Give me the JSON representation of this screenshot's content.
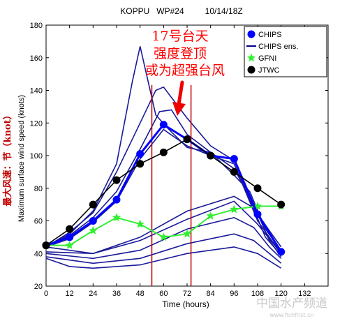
{
  "chart_data": {
    "type": "line",
    "title": "KOPPU   WP#24         10/14/18Z",
    "xlabel": "Time (hours)",
    "ylabel": "Maximum surface wind speed (knots)",
    "xlim": [
      0,
      144
    ],
    "ylim": [
      20,
      180
    ],
    "xticks": [
      0,
      12,
      24,
      36,
      48,
      60,
      72,
      84,
      96,
      108,
      120,
      132
    ],
    "yticks": [
      20,
      40,
      60,
      80,
      100,
      120,
      140,
      160,
      180
    ],
    "grid": false,
    "legend_position": "top-right",
    "legend": [
      {
        "name": "CHIPS",
        "color": "#0000ff",
        "marker": "circle"
      },
      {
        "name": "CHIPS ens.",
        "color": "#00008b",
        "marker": "none"
      },
      {
        "name": "GFNI",
        "color": "#33ee33",
        "marker": "star"
      },
      {
        "name": "JTWC",
        "color": "#000000",
        "marker": "circle"
      }
    ],
    "series": [
      {
        "name": "CHIPS",
        "color": "#0000ff",
        "x": [
          0,
          12,
          24,
          36,
          48,
          60,
          72,
          84,
          96,
          108,
          120
        ],
        "y": [
          45,
          50,
          60,
          73,
          101,
          119,
          110,
          100,
          98,
          64,
          41
        ]
      },
      {
        "name": "GFNI",
        "color": "#33ee33",
        "x": [
          0,
          12,
          24,
          36,
          48,
          60,
          72,
          84,
          96,
          108,
          120
        ],
        "y": [
          45,
          45,
          54,
          62,
          58,
          50,
          52,
          63,
          67,
          69,
          69
        ]
      },
      {
        "name": "JTWC",
        "color": "#000000",
        "x": [
          0,
          12,
          24,
          36,
          48,
          60,
          72,
          84,
          96,
          108,
          120
        ],
        "y": [
          45,
          55,
          70,
          85,
          95,
          102,
          110,
          100,
          90,
          80,
          70
        ]
      }
    ],
    "ensemble": [
      {
        "x": [
          0,
          12,
          24,
          36,
          44,
          48,
          56,
          62,
          72,
          84,
          96,
          104,
          112,
          120
        ],
        "y": [
          44,
          52,
          66,
          95,
          145,
          167,
          125,
          117,
          105,
          102,
          88,
          78,
          55,
          42
        ]
      },
      {
        "x": [
          0,
          12,
          24,
          36,
          48,
          56,
          60,
          72,
          84,
          96,
          104,
          112,
          120
        ],
        "y": [
          44,
          53,
          65,
          90,
          120,
          140,
          142,
          123,
          106,
          97,
          73,
          50,
          39
        ]
      },
      {
        "x": [
          0,
          12,
          24,
          36,
          48,
          58,
          64,
          72,
          84,
          96,
          106,
          114,
          120
        ],
        "y": [
          44,
          51,
          62,
          78,
          104,
          127,
          128,
          113,
          102,
          92,
          70,
          48,
          38
        ]
      },
      {
        "x": [
          0,
          12,
          24,
          36,
          48,
          60,
          72,
          84,
          96,
          108,
          120
        ],
        "y": [
          44,
          49,
          59,
          72,
          98,
          116,
          106,
          100,
          95,
          60,
          40
        ]
      },
      {
        "x": [
          0,
          24,
          48,
          72,
          96,
          106,
          114,
          120
        ],
        "y": [
          41,
          40,
          50,
          66,
          75,
          68,
          54,
          44
        ]
      },
      {
        "x": [
          0,
          24,
          48,
          72,
          96,
          106,
          114,
          120
        ],
        "y": [
          40,
          37,
          42,
          55,
          62,
          56,
          44,
          37
        ]
      },
      {
        "x": [
          0,
          24,
          48,
          72,
          96,
          106,
          114,
          120
        ],
        "y": [
          38,
          34,
          37,
          46,
          52,
          48,
          40,
          34
        ]
      },
      {
        "x": [
          0,
          12,
          24,
          48,
          72,
          96,
          108,
          120
        ],
        "y": [
          37,
          32,
          31,
          33,
          40,
          44,
          40,
          31
        ]
      },
      {
        "x": [
          0,
          24,
          48,
          72,
          96,
          108,
          120
        ],
        "y": [
          44,
          40,
          48,
          61,
          72,
          58,
          40
        ]
      }
    ],
    "vlines": [
      {
        "x": 54,
        "color": "#c00000"
      },
      {
        "x": 74,
        "color": "#c00000"
      }
    ]
  },
  "annotation": {
    "lines": [
      "17号台天",
      "强度登顶",
      "或为超强台风"
    ],
    "color": "#ff0000",
    "arrow_color": "#ee0000"
  },
  "side_label": {
    "text": "最大风速：节（knot）",
    "color": "#c00000"
  },
  "watermark": {
    "line1": "中国水产频道",
    "line2": "www.fishfirst.cn"
  }
}
